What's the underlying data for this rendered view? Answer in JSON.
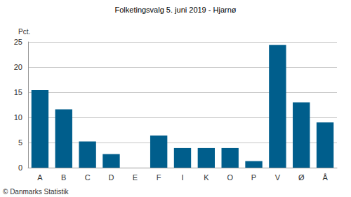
{
  "chart_data": {
    "type": "bar",
    "title": "Folketingsvalg 5. juni 2019 - Hjarnø",
    "ylabel": "Pct.",
    "categories": [
      "A",
      "B",
      "C",
      "D",
      "E",
      "F",
      "I",
      "K",
      "O",
      "P",
      "V",
      "Ø",
      "Å"
    ],
    "values": [
      15.4,
      11.6,
      5.2,
      2.7,
      0,
      6.4,
      3.9,
      3.9,
      3.9,
      1.3,
      24.4,
      13.0,
      9.0
    ],
    "color": "#005e8c",
    "ylim": [
      0,
      25
    ],
    "yticks": [
      0,
      5,
      10,
      15,
      20,
      25
    ],
    "grid": true,
    "annotations": [
      "© Danmarks Statistik"
    ]
  }
}
